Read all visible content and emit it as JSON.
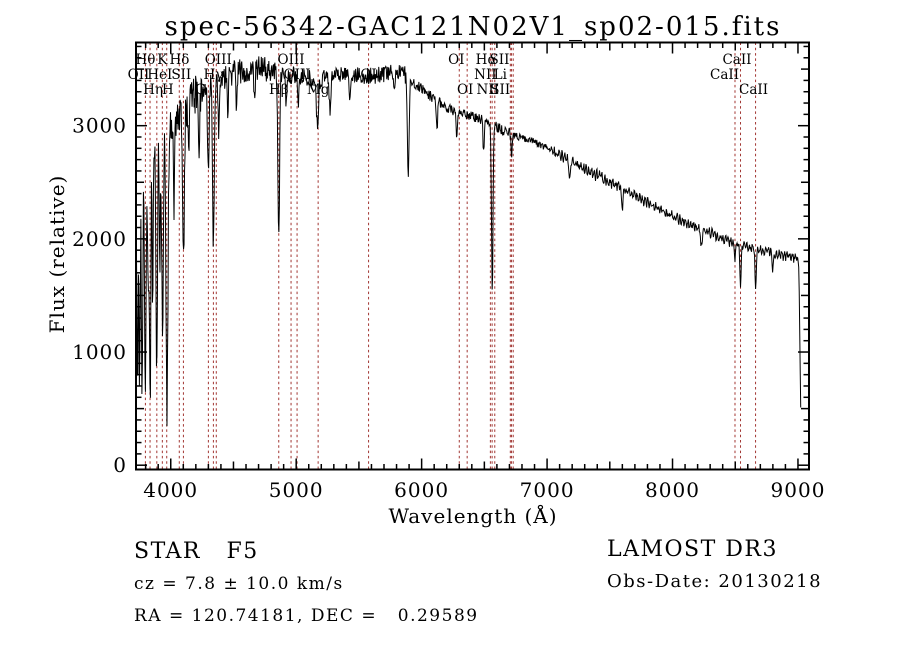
{
  "title": "spec-56342-GAC121N02V1_sp02-015.fits",
  "axes": {
    "x_label": "Wavelength (Å)",
    "y_label": "Flux (relative)",
    "x_ticks": [
      4000,
      5000,
      6000,
      7000,
      8000,
      9000
    ],
    "y_ticks": [
      0,
      1000,
      2000,
      3000
    ]
  },
  "annotations": {
    "class_label": "STAR   F5",
    "cz_label": "cz = 7.8 ± 10.0 km/s",
    "radec_label": "RA = 120.74181, DEC =   0.29589",
    "survey_label": "LAMOST DR3",
    "obsdate_label": "Obs-Date: 20130218"
  },
  "colors": {
    "spectrum": "#000000",
    "line_marker": "#a23632",
    "frame": "#000000",
    "background": "#ffffff"
  },
  "chart_data": {
    "type": "line",
    "title": "spec-56342-GAC121N02V1_sp02-015.fits",
    "xlabel": "Wavelength (Å)",
    "ylabel": "Flux (relative)",
    "xlim": [
      3723,
      9088
    ],
    "ylim": [
      -38,
      3735
    ],
    "grid": false,
    "spectral_lines": [
      {
        "label": "Hθ",
        "wl": 3798,
        "row": 1,
        "dx": 0
      },
      {
        "label": "K",
        "wl": 3933,
        "row": 1,
        "dx": 0
      },
      {
        "label": "Hδ",
        "wl": 4101,
        "row": 1,
        "dx": -4
      },
      {
        "label": "OIII",
        "wl": 4363,
        "row": 1,
        "dx": 2
      },
      {
        "label": "OIII",
        "wl": 4959,
        "row": 1,
        "dx": 0
      },
      {
        "label": "OI",
        "wl": 6300,
        "row": 1,
        "dx": -3
      },
      {
        "label": "Hα",
        "wl": 6562,
        "row": 1,
        "dx": -6
      },
      {
        "label": "SII",
        "wl": 6716,
        "row": 1,
        "dx": -12
      },
      {
        "label": "CaII",
        "wl": 8498,
        "row": 1,
        "dx": 2
      },
      {
        "label": "OII",
        "wl": 3727,
        "row": 2,
        "dx": 2
      },
      {
        "label": "HeI",
        "wl": 3889,
        "row": 2,
        "dx": 3
      },
      {
        "label": "SII",
        "wl": 4068,
        "row": 2,
        "dx": 2
      },
      {
        "label": "Hγ",
        "wl": 4340,
        "row": 2,
        "dx": 0
      },
      {
        "label": "OIII",
        "wl": 5007,
        "row": 2,
        "dx": 0
      },
      {
        "label": "OI",
        "wl": 5577,
        "row": 2,
        "dx": 0
      },
      {
        "label": "NII",
        "wl": 6548,
        "row": 2,
        "dx": -5
      },
      {
        "label": "Li",
        "wl": 6707,
        "row": 2,
        "dx": -10
      },
      {
        "label": "CaII",
        "wl": 8542,
        "row": 2,
        "dx": -16
      },
      {
        "label": "Hη",
        "wl": 3835,
        "row": 3,
        "dx": 3
      },
      {
        "label": "H",
        "wl": 3968,
        "row": 3,
        "dx": 1
      },
      {
        "label": "G",
        "wl": 4300,
        "row": 3,
        "dx": -8
      },
      {
        "label": "Hβ",
        "wl": 4861,
        "row": 3,
        "dx": 0
      },
      {
        "label": "Mg",
        "wl": 5175,
        "row": 3,
        "dx": 0
      },
      {
        "label": "OI",
        "wl": 6363,
        "row": 3,
        "dx": -2
      },
      {
        "label": "NII",
        "wl": 6583,
        "row": 3,
        "dx": -7
      },
      {
        "label": "SII",
        "wl": 6730,
        "row": 3,
        "dx": -13
      },
      {
        "label": "CaII",
        "wl": 8662,
        "row": 3,
        "dx": -2
      }
    ],
    "continuum_anchors": [
      [
        3726,
        2050
      ],
      [
        3755,
        2400
      ],
      [
        3790,
        2650
      ],
      [
        3830,
        2800
      ],
      [
        3880,
        2880
      ],
      [
        3930,
        2920
      ],
      [
        3980,
        2960
      ],
      [
        4040,
        3040
      ],
      [
        4110,
        3140
      ],
      [
        4200,
        3280
      ],
      [
        4290,
        3360
      ],
      [
        4400,
        3430
      ],
      [
        4500,
        3465
      ],
      [
        4600,
        3490
      ],
      [
        4700,
        3505
      ],
      [
        4790,
        3495
      ],
      [
        4870,
        3470
      ],
      [
        4960,
        3445
      ],
      [
        5060,
        3425
      ],
      [
        5160,
        3405
      ],
      [
        5260,
        3425
      ],
      [
        5360,
        3445
      ],
      [
        5460,
        3450
      ],
      [
        5560,
        3435
      ],
      [
        5660,
        3450
      ],
      [
        5760,
        3470
      ],
      [
        5850,
        3465
      ],
      [
        5900,
        3420
      ],
      [
        5960,
        3360
      ],
      [
        6060,
        3270
      ],
      [
        6160,
        3190
      ],
      [
        6260,
        3130
      ],
      [
        6360,
        3090
      ],
      [
        6460,
        3060
      ],
      [
        6560,
        3015
      ],
      [
        6660,
        2955
      ],
      [
        6760,
        2915
      ],
      [
        6860,
        2875
      ],
      [
        7010,
        2795
      ],
      [
        7160,
        2705
      ],
      [
        7310,
        2615
      ],
      [
        7460,
        2525
      ],
      [
        7610,
        2435
      ],
      [
        7760,
        2345
      ],
      [
        7910,
        2255
      ],
      [
        8060,
        2165
      ],
      [
        8210,
        2095
      ],
      [
        8360,
        2025
      ],
      [
        8510,
        1955
      ],
      [
        8660,
        1905
      ],
      [
        8810,
        1875
      ],
      [
        8930,
        1845
      ],
      [
        9000,
        1825
      ],
      [
        9006,
        1760
      ],
      [
        9012,
        1420
      ],
      [
        9018,
        800
      ],
      [
        9024,
        330
      ]
    ],
    "absorption_dips": [
      [
        3736,
        1650,
        4
      ],
      [
        3752,
        1750,
        4
      ],
      [
        3771,
        1950,
        5
      ],
      [
        3798,
        2150,
        6
      ],
      [
        3820,
        1250,
        4
      ],
      [
        3835,
        2300,
        6
      ],
      [
        3856,
        1300,
        4
      ],
      [
        3889,
        2150,
        6
      ],
      [
        3912,
        1200,
        4
      ],
      [
        3934,
        1750,
        6
      ],
      [
        3970,
        2600,
        7
      ],
      [
        4026,
        800,
        5
      ],
      [
        4102,
        1300,
        7
      ],
      [
        4144,
        450,
        5
      ],
      [
        4227,
        500,
        5
      ],
      [
        4300,
        650,
        7
      ],
      [
        4340,
        1420,
        7
      ],
      [
        4383,
        520,
        5
      ],
      [
        4455,
        380,
        5
      ],
      [
        4526,
        320,
        5
      ],
      [
        4668,
        280,
        5
      ],
      [
        4861,
        1420,
        7
      ],
      [
        4920,
        320,
        5
      ],
      [
        5015,
        280,
        5
      ],
      [
        5170,
        420,
        8
      ],
      [
        5270,
        330,
        6
      ],
      [
        5430,
        220,
        6
      ],
      [
        5780,
        200,
        5
      ],
      [
        5893,
        830,
        7
      ],
      [
        6122,
        280,
        5
      ],
      [
        6280,
        200,
        5
      ],
      [
        6494,
        280,
        5
      ],
      [
        6563,
        1480,
        6
      ],
      [
        6717,
        180,
        5
      ],
      [
        7180,
        170,
        7
      ],
      [
        7600,
        160,
        6
      ],
      [
        8230,
        170,
        6
      ],
      [
        8498,
        130,
        5
      ],
      [
        8542,
        370,
        5
      ],
      [
        8662,
        330,
        5
      ],
      [
        8800,
        150,
        5
      ]
    ],
    "noise": {
      "seed": 20130218,
      "step": 4,
      "bands": [
        [
          4000,
          245
        ],
        [
          4250,
          175
        ],
        [
          4450,
          125
        ],
        [
          4800,
          110
        ],
        [
          5200,
          85
        ],
        [
          5900,
          75
        ],
        [
          6800,
          45
        ],
        [
          7600,
          33
        ],
        [
          9100,
          27
        ]
      ],
      "fringe_amp": 25,
      "fringe_period_scale": 3.4,
      "fringe_start": 7000
    }
  }
}
